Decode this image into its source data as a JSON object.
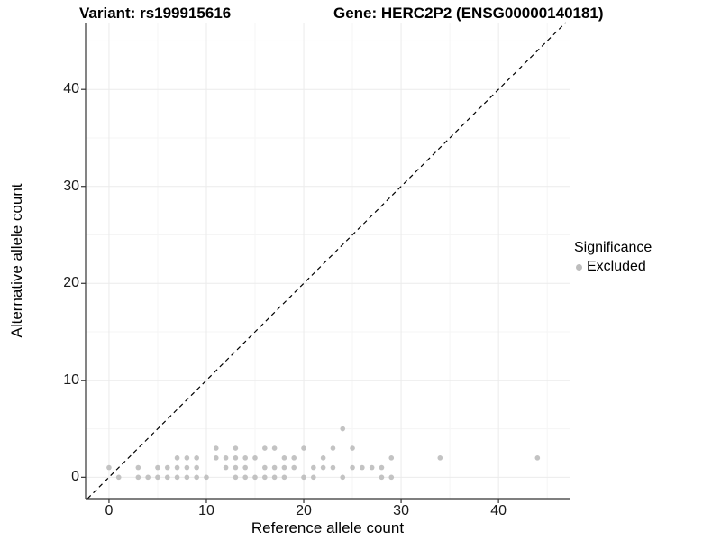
{
  "chart_data": {
    "type": "scatter",
    "title_variant": "Variant: rs199915616",
    "title_gene": "Gene: HERC2P2 (ENSG00000140181)",
    "xlabel": "Reference allele count",
    "ylabel": "Alternative allele count",
    "xlim": [
      -2.4,
      47.3
    ],
    "ylim": [
      -2.2,
      46.9
    ],
    "xticks": [
      0,
      10,
      20,
      30,
      40
    ],
    "yticks": [
      0,
      10,
      20,
      30,
      40
    ],
    "xminor": [
      5,
      15,
      25,
      35,
      45
    ],
    "yminor": [
      5,
      15,
      25,
      35,
      45
    ],
    "grid": true,
    "legend": {
      "title": "Significance",
      "position": "right"
    },
    "identity_line": {
      "slope": 1,
      "intercept": 0,
      "style": "dashed",
      "color": "#000000"
    },
    "series": [
      {
        "name": "Excluded",
        "color": "#bdbdbd",
        "points": [
          [
            1,
            0
          ],
          [
            3,
            0
          ],
          [
            4,
            0
          ],
          [
            5,
            0
          ],
          [
            6,
            0
          ],
          [
            7,
            0
          ],
          [
            8,
            0
          ],
          [
            9,
            0
          ],
          [
            10,
            0
          ],
          [
            13,
            0
          ],
          [
            14,
            0
          ],
          [
            15,
            0
          ],
          [
            16,
            0
          ],
          [
            17,
            0
          ],
          [
            18,
            0
          ],
          [
            20,
            0
          ],
          [
            21,
            0
          ],
          [
            24,
            0
          ],
          [
            28,
            0
          ],
          [
            29,
            0
          ],
          [
            0,
            1
          ],
          [
            3,
            1
          ],
          [
            5,
            1
          ],
          [
            6,
            1
          ],
          [
            7,
            1
          ],
          [
            8,
            1
          ],
          [
            9,
            1
          ],
          [
            12,
            1
          ],
          [
            13,
            1
          ],
          [
            14,
            1
          ],
          [
            16,
            1
          ],
          [
            17,
            1
          ],
          [
            18,
            1
          ],
          [
            19,
            1
          ],
          [
            21,
            1
          ],
          [
            22,
            1
          ],
          [
            23,
            1
          ],
          [
            25,
            1
          ],
          [
            26,
            1
          ],
          [
            27,
            1
          ],
          [
            28,
            1
          ],
          [
            7,
            2
          ],
          [
            8,
            2
          ],
          [
            9,
            2
          ],
          [
            11,
            2
          ],
          [
            12,
            2
          ],
          [
            13,
            2
          ],
          [
            14,
            2
          ],
          [
            15,
            2
          ],
          [
            18,
            2
          ],
          [
            19,
            2
          ],
          [
            22,
            2
          ],
          [
            29,
            2
          ],
          [
            34,
            2
          ],
          [
            44,
            2
          ],
          [
            11,
            3
          ],
          [
            13,
            3
          ],
          [
            16,
            3
          ],
          [
            17,
            3
          ],
          [
            20,
            3
          ],
          [
            23,
            3
          ],
          [
            25,
            3
          ],
          [
            24,
            5
          ]
        ]
      }
    ]
  },
  "colors": {
    "point": "#bdbdbd",
    "axis_line": "#333333",
    "tick_text": "#1a1a1a",
    "grid_major": "#ebebeb",
    "grid_minor": "#f5f5f5"
  }
}
